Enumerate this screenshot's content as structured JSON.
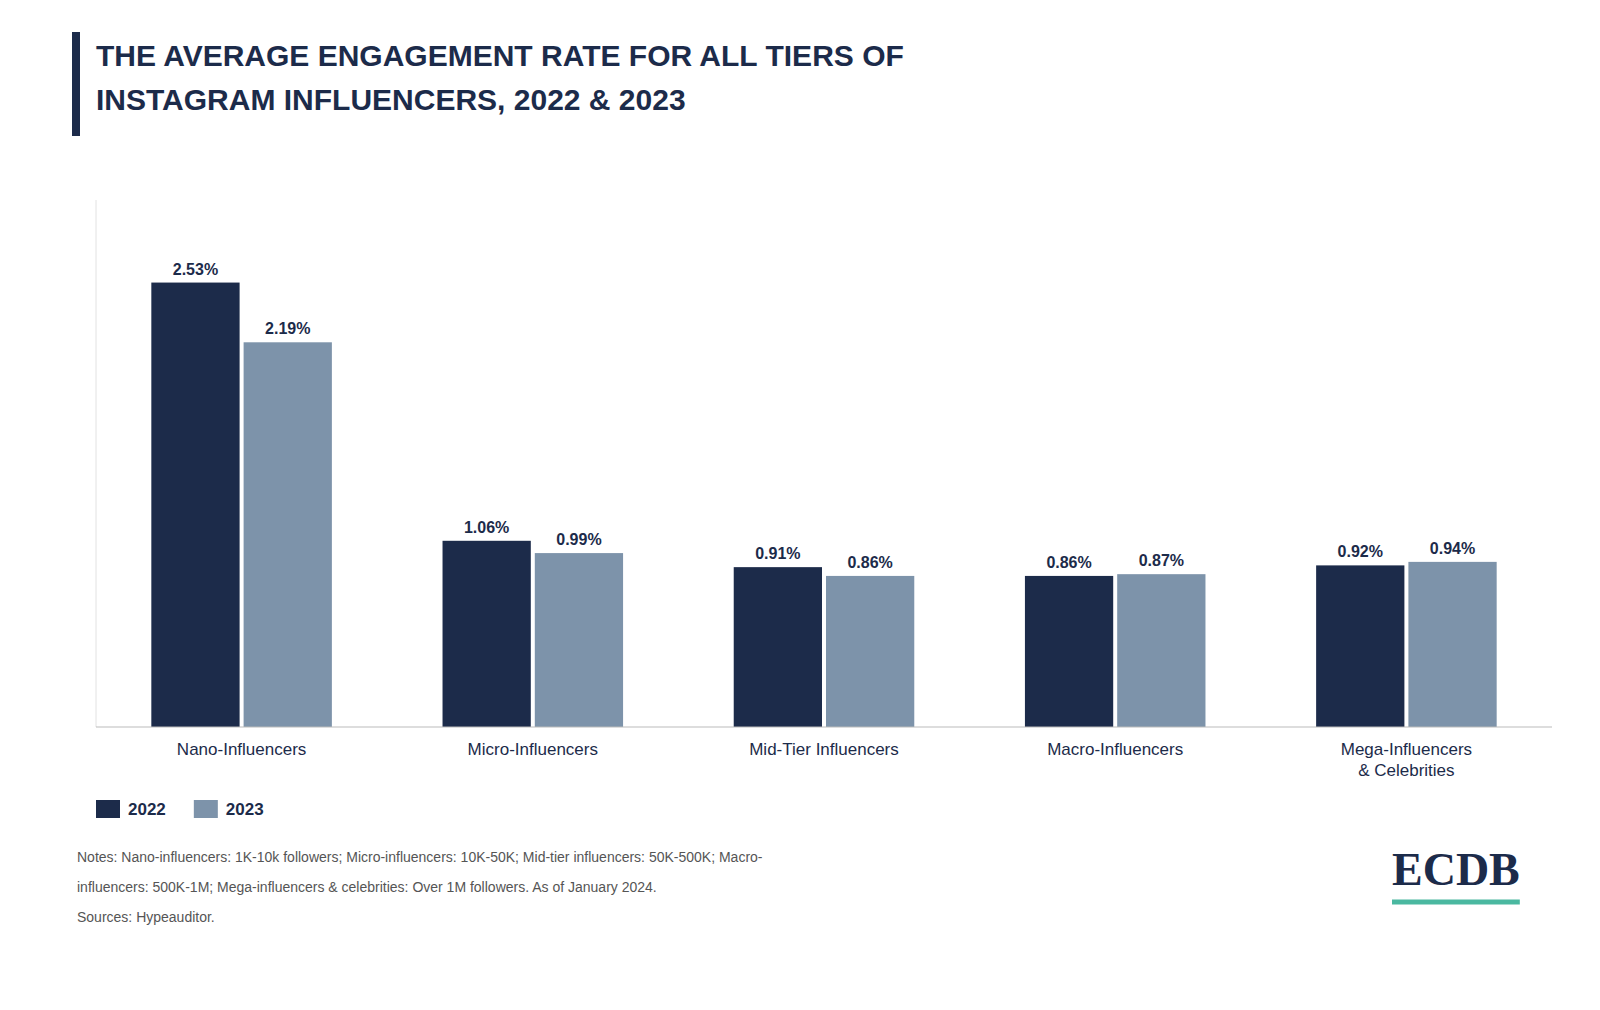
{
  "chart_data": {
    "type": "bar",
    "title": "THE AVERAGE ENGAGEMENT RATE FOR ALL TIERS OF\nINSTAGRAM INFLUENCERS, 2022 & 2023",
    "categories": [
      "Nano-Influencers",
      "Micro-Influencers",
      "Mid-Tier Influencers",
      "Macro-Influencers",
      "Mega-Influencers\n& Celebrities"
    ],
    "series": [
      {
        "name": "2022",
        "color": "#1c2b4a",
        "values": [
          2.53,
          1.06,
          0.91,
          0.86,
          0.92
        ],
        "value_labels": [
          "2.53%",
          "1.06%",
          "0.91%",
          "0.86%",
          "0.92%"
        ]
      },
      {
        "name": "2023",
        "color": "#7d93aa",
        "values": [
          2.19,
          0.99,
          0.86,
          0.87,
          0.94
        ],
        "value_labels": [
          "2.19%",
          "0.99%",
          "0.86%",
          "0.87%",
          "0.94%"
        ]
      }
    ],
    "ylim": [
      0,
      3.0
    ],
    "data_labels": true,
    "tick_labels": "x",
    "grid": false,
    "legend": "bottom",
    "annotations": [
      "Notes: Nano-influencers: 1K-10k followers; Micro-influencers: 10K-50K; Mid-tier influencers: 50K-500K; Macro-",
      "influencers: 500K-1M; Mega-influencers & celebrities: Over 1M followers. As of January 2024.",
      "Sources: Hypeauditor.",
      "ECDB"
    ]
  }
}
